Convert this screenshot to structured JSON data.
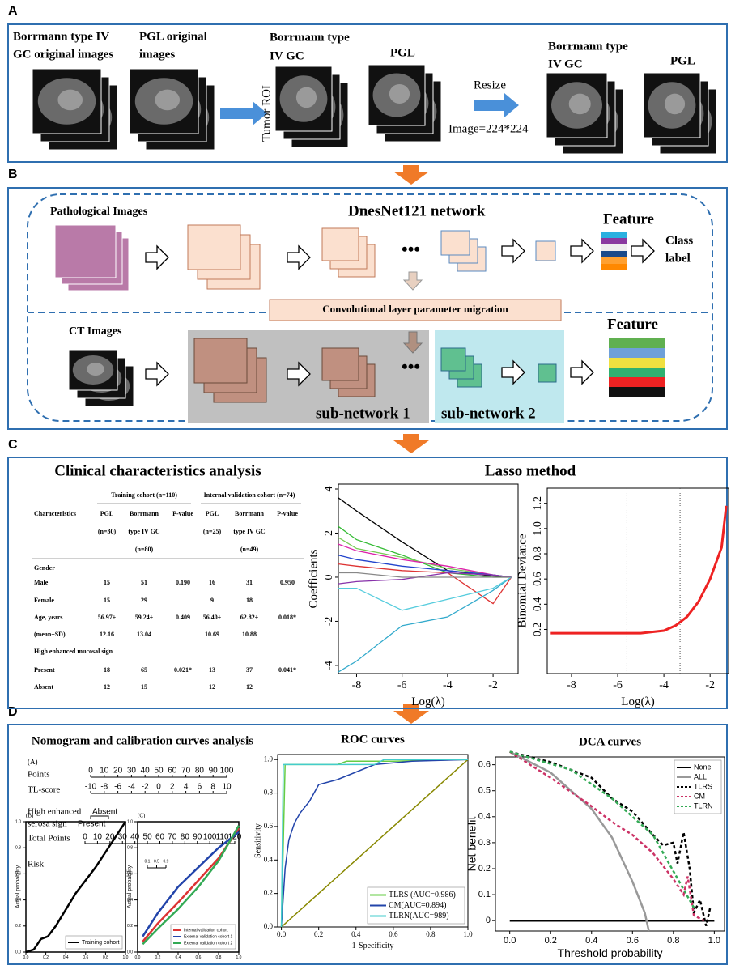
{
  "panel_a": {
    "label": "A",
    "gc_original": [
      "Borrmann type IV",
      "GC original images"
    ],
    "pgl_original": [
      "PGL original",
      "images"
    ],
    "tumor_roi": "Tumor ROI",
    "gc_roi": [
      "Borrmann type",
      "IV GC"
    ],
    "pgl_roi": "PGL",
    "resize": "Resize",
    "image_size": "Image=224*224",
    "gc_resized": [
      "Borrmann type",
      "IV GC"
    ],
    "pgl_resized": "PGL"
  },
  "panel_b": {
    "label": "B",
    "pathological": "Pathological  Images",
    "network": "DnesNet121 network",
    "feature_top": "Feature",
    "class_label": [
      "Class",
      "label"
    ],
    "migration": "Convolutional layer parameter migration",
    "ct": "CT Images",
    "feature_bottom": "Feature",
    "sub1": "sub-network 1",
    "sub2": "sub-network 2"
  },
  "panel_c": {
    "label": "C",
    "table_title": "Clinical characteristics analysis",
    "table": {
      "groups": [
        "Training cohort (n=110)",
        "Internal validation cohort (n=74)"
      ],
      "header": [
        [
          "Characteristics",
          "PGL",
          "Borrmann",
          "P-value",
          "PGL",
          "Borrmann",
          "P-value"
        ],
        [
          null,
          "(n=30)",
          "type IV GC",
          null,
          "(n=25)",
          "type IV GC",
          null
        ],
        [
          null,
          null,
          "(n=80)",
          null,
          null,
          "(n=49)",
          null
        ]
      ],
      "rows": [
        [
          "Gender",
          null,
          null,
          null,
          null,
          null,
          null
        ],
        [
          "Male",
          "15",
          "51",
          "0.190",
          "16",
          "31",
          "0.950"
        ],
        [
          "Female",
          "15",
          "29",
          null,
          "9",
          "18",
          null
        ],
        [
          "Age, years",
          "56.97±",
          "59.24±",
          "0.409",
          "56.40±",
          "62.82±",
          "0.018*"
        ],
        [
          "(mean±SD)",
          "12.16",
          "13.04",
          null,
          "10.69",
          "10.88",
          null
        ],
        [
          "High enhanced mucosal sign",
          null,
          null,
          null,
          null,
          null,
          null
        ],
        [
          "Present",
          "18",
          "65",
          "0.021*",
          "13",
          "37",
          "0.041*"
        ],
        [
          "Absent",
          "12",
          "15",
          null,
          "12",
          "12",
          null
        ]
      ]
    },
    "lasso_title": "Lasso method",
    "lasso": {
      "type": "line",
      "xlabel": "Log(λ)",
      "ylabel": "Coefficients",
      "xlim": [
        -8.8,
        -0.9
      ],
      "ylim": [
        -4.37,
        4.22
      ],
      "xticks": [
        -8,
        -6,
        -4,
        -2
      ],
      "yticks": [
        -4,
        -2,
        0,
        2,
        4
      ],
      "series": [
        {
          "color": "#000000",
          "x": [
            -8.8,
            -8,
            -6,
            -4,
            -2,
            -1.2
          ],
          "values": [
            3.6,
            3.0,
            1.6,
            0.3,
            0.05,
            0
          ]
        },
        {
          "color": "#33bb33",
          "x": [
            -8.8,
            -8,
            -6,
            -4,
            -2,
            -1.2
          ],
          "values": [
            2.3,
            1.7,
            1.0,
            0.2,
            0,
            0
          ]
        },
        {
          "color": "#77cc55",
          "x": [
            -8.8,
            -8,
            -6,
            -4,
            -2,
            -1.2
          ],
          "values": [
            1.8,
            1.3,
            0.9,
            0.4,
            0.1,
            0
          ]
        },
        {
          "color": "#dd22aa",
          "x": [
            -8.8,
            -8,
            -6,
            -4,
            -2,
            -1.2
          ],
          "values": [
            1.5,
            1.2,
            0.8,
            0.5,
            0.1,
            0
          ]
        },
        {
          "color": "#2244cc",
          "x": [
            -8.8,
            -8,
            -6,
            -4,
            -2,
            -1.2
          ],
          "values": [
            1.0,
            0.8,
            0.5,
            0.3,
            0.1,
            0
          ]
        },
        {
          "color": "#dd3333",
          "x": [
            -8.8,
            -8,
            -6,
            -4,
            -2,
            -1.2
          ],
          "values": [
            0.6,
            0.5,
            0.3,
            0.2,
            -1.2,
            0
          ]
        },
        {
          "color": "#33aacc",
          "x": [
            -8.8,
            -8,
            -6,
            -4,
            -2,
            -1.2
          ],
          "values": [
            -4.3,
            -3.8,
            -2.2,
            -1.8,
            -0.6,
            0
          ]
        },
        {
          "color": "#55ccdd",
          "x": [
            -8.8,
            -8,
            -6,
            -4,
            -2,
            -1.2
          ],
          "values": [
            -0.5,
            -0.5,
            -1.5,
            -1.0,
            -0.5,
            0
          ]
        },
        {
          "color": "#8833aa",
          "x": [
            -8.8,
            -8,
            -6,
            -4,
            -2,
            -1.2
          ],
          "values": [
            -0.3,
            -0.2,
            -0.1,
            0.2,
            0.1,
            0
          ]
        },
        {
          "color": "#888888",
          "x": [
            -8.8,
            -8,
            -6,
            -4,
            -2,
            -1.2
          ],
          "values": [
            0.2,
            0.2,
            0,
            0,
            0,
            0
          ]
        }
      ]
    },
    "deviance": {
      "type": "line",
      "xlabel": "Log(λ)",
      "ylabel": "Binomial Deviance",
      "xlim": [
        -9.05,
        -1.2
      ],
      "ylim": [
        -0.15,
        1.32
      ],
      "xticks": [
        -8,
        -6,
        -4,
        -2
      ],
      "yticks": [
        0.2,
        0.4,
        0.6,
        0.8,
        {
          "value": 1,
          "label": "1.0"
        },
        1.2
      ],
      "vlines": [
        -5.6,
        -3.3
      ],
      "series": [
        {
          "color": "#ee2222",
          "x": [
            -8.9,
            -6,
            -5,
            -4,
            -3.5,
            -3,
            -2.5,
            -2,
            -1.5,
            -1.3
          ],
          "values": [
            0.17,
            0.17,
            0.17,
            0.19,
            0.23,
            0.3,
            0.42,
            0.6,
            0.85,
            1.18
          ]
        }
      ]
    }
  },
  "panel_d": {
    "label": "D",
    "nomogram_title": "Nomogram and calibration curves analysis",
    "nomogram": {
      "tag": "(A)",
      "points": {
        "label": "Points",
        "lim": [
          0,
          100
        ],
        "ticks": [
          0,
          10,
          20,
          30,
          40,
          50,
          60,
          70,
          80,
          90,
          100
        ]
      },
      "tl_score": {
        "label": "TL-score",
        "lim": [
          -10,
          10
        ],
        "ticks": [
          -10,
          -8,
          -6,
          -4,
          -2,
          0,
          2,
          4,
          6,
          8,
          10
        ]
      },
      "serosa": {
        "label": [
          "High enhanced",
          "serosa sign"
        ],
        "levels": [
          "Absent",
          "Present"
        ]
      },
      "total": {
        "label": "Total Points",
        "lim": [
          0,
          120
        ],
        "ticks": [
          0,
          10,
          20,
          30,
          40,
          50,
          60,
          70,
          80,
          90,
          100,
          110,
          120
        ]
      },
      "risk": {
        "label": "Risk",
        "lim": [
          0.1,
          0.9
        ],
        "ticks": [
          0.1,
          0.5,
          0.9
        ]
      }
    },
    "calib_b": {
      "type": "line",
      "tag": "(B)",
      "ylabel": "Actual probability",
      "legend": "lower right",
      "xlim": [
        0,
        1
      ],
      "ylim": [
        0,
        1
      ],
      "xticks": [
        {
          "value": 0,
          "label": "0.0"
        },
        0.2,
        0.4,
        0.6,
        0.8,
        {
          "value": 1,
          "label": "1.0"
        }
      ],
      "yticks": [
        {
          "value": 0,
          "label": "0.0"
        },
        0.2,
        0.4,
        0.6,
        0.8,
        {
          "value": 1,
          "label": "1.0"
        }
      ],
      "series": [
        {
          "name": "Training cohort",
          "color": "#000000",
          "x": [
            0,
            0.08,
            0.15,
            0.22,
            0.3,
            0.5,
            0.7,
            1
          ],
          "values": [
            0,
            0.02,
            0.1,
            0.12,
            0.2,
            0.45,
            0.65,
            1
          ]
        }
      ]
    },
    "calib_c": {
      "type": "line",
      "tag": "(C)",
      "ylabel": "Actual probability",
      "legend": "lower right",
      "xlim": [
        0,
        1
      ],
      "ylim": [
        0,
        1
      ],
      "xticks": [
        {
          "value": 0,
          "label": "0.0"
        },
        0.2,
        0.4,
        0.6,
        0.8,
        {
          "value": 1,
          "label": "1.0"
        }
      ],
      "yticks": [
        {
          "value": 0,
          "label": "0.0"
        },
        0.2,
        0.4,
        0.6,
        0.8,
        {
          "value": 1,
          "label": "1.0"
        }
      ],
      "series": [
        {
          "name": "Internal validation cohort",
          "color": "#dd3333",
          "x": [
            0.05,
            0.2,
            0.4,
            0.6,
            0.8,
            1
          ],
          "values": [
            0.08,
            0.22,
            0.38,
            0.55,
            0.72,
            0.95
          ]
        },
        {
          "name": "External validation cohort 1",
          "color": "#2244aa",
          "x": [
            0.05,
            0.2,
            0.4,
            0.6,
            0.8,
            1
          ],
          "values": [
            0.12,
            0.3,
            0.5,
            0.65,
            0.8,
            0.92
          ]
        },
        {
          "name": "External validation cohort 2",
          "color": "#33aa55",
          "x": [
            0.05,
            0.2,
            0.4,
            0.6,
            0.8,
            1
          ],
          "values": [
            0.06,
            0.18,
            0.33,
            0.5,
            0.7,
            0.97
          ]
        }
      ]
    },
    "roc": {
      "type": "line",
      "title": "ROC curves",
      "xlabel": "1-Specificity",
      "ylabel": "Sensitivity",
      "legend": "lower right",
      "xlim": [
        -0.02,
        1
      ],
      "ylim": [
        0,
        1.03
      ],
      "xticks": [
        {
          "value": 0,
          "label": "0.0"
        },
        0.2,
        0.4,
        0.6,
        0.8,
        {
          "value": 1,
          "label": "1.0"
        }
      ],
      "yticks": [
        {
          "value": 0,
          "label": "0.0"
        },
        0.2,
        0.4,
        0.6,
        0.8,
        {
          "value": 1,
          "label": "1.0"
        }
      ],
      "series": [
        {
          "color": "#888800",
          "x": [
            0,
            1
          ],
          "values": [
            0,
            1
          ]
        },
        {
          "name": "TLRS  (AUC=0.986)",
          "color": "#66cc44",
          "x": [
            0,
            0.02,
            0.3,
            0.35,
            0.6,
            1
          ],
          "values": [
            0,
            0.97,
            0.97,
            0.99,
            0.99,
            1
          ]
        },
        {
          "name": "CM(AUC=0.894)",
          "color": "#2244aa",
          "x": [
            0,
            0.02,
            0.04,
            0.07,
            0.1,
            0.15,
            0.2,
            0.3,
            0.5,
            0.7,
            1
          ],
          "values": [
            0,
            0.35,
            0.52,
            0.62,
            0.68,
            0.75,
            0.85,
            0.88,
            0.97,
            0.99,
            1
          ]
        },
        {
          "name": "TLRN(AUC=989)",
          "color": "#44cccc",
          "x": [
            0,
            0.01,
            0.2,
            0.5,
            0.55,
            1
          ],
          "values": [
            0,
            0.97,
            0.97,
            0.97,
            1,
            1
          ]
        }
      ]
    },
    "dca": {
      "type": "line",
      "title": "DCA curves",
      "xlabel": "Threshold probability",
      "ylabel": "Net benefit",
      "legend": "upper right",
      "xlim": [
        -0.07,
        1.05
      ],
      "ylim": [
        -0.04,
        0.63
      ],
      "xticks": [
        {
          "value": 0,
          "label": "0.0"
        },
        0.2,
        0.4,
        0.6,
        0.8,
        {
          "value": 1,
          "label": "1.0"
        }
      ],
      "yticks": [
        0,
        0.1,
        0.2,
        0.3,
        0.4,
        0.5,
        0.6
      ],
      "series": [
        {
          "name": "None",
          "color": "#000000",
          "x": [
            0,
            1
          ],
          "values": [
            0,
            0
          ]
        },
        {
          "name": "ALL",
          "color": "#999999",
          "x": [
            0,
            0.2,
            0.4,
            0.5,
            0.6,
            0.66,
            0.68
          ],
          "values": [
            0.65,
            0.57,
            0.43,
            0.32,
            0.15,
            0.03,
            -0.04
          ]
        },
        {
          "name": "TLRS",
          "color": "#000000",
          "dashed": true,
          "x": [
            0,
            0.2,
            0.4,
            0.5,
            0.6,
            0.7,
            0.75,
            0.8,
            0.82,
            0.85,
            0.88,
            0.9,
            0.93,
            0.96,
            0.98
          ],
          "values": [
            0.65,
            0.61,
            0.55,
            0.47,
            0.42,
            0.33,
            0.29,
            0.3,
            0.22,
            0.34,
            0.2,
            0.03,
            0.08,
            -0.02,
            0.05
          ]
        },
        {
          "name": "CM",
          "color": "#cc3366",
          "dashed": true,
          "x": [
            0,
            0.2,
            0.4,
            0.5,
            0.6,
            0.7,
            0.8,
            0.85,
            0.87,
            0.9,
            0.95
          ],
          "values": [
            0.65,
            0.55,
            0.44,
            0.38,
            0.33,
            0.26,
            0.16,
            0.1,
            0.17,
            0.02,
            0
          ]
        },
        {
          "name": "TLRN",
          "color": "#33aa55",
          "dashed": true,
          "x": [
            0,
            0.3,
            0.5,
            0.7,
            0.9
          ],
          "values": [
            0.65,
            0.58,
            0.47,
            0.33,
            0.05
          ]
        }
      ]
    }
  }
}
